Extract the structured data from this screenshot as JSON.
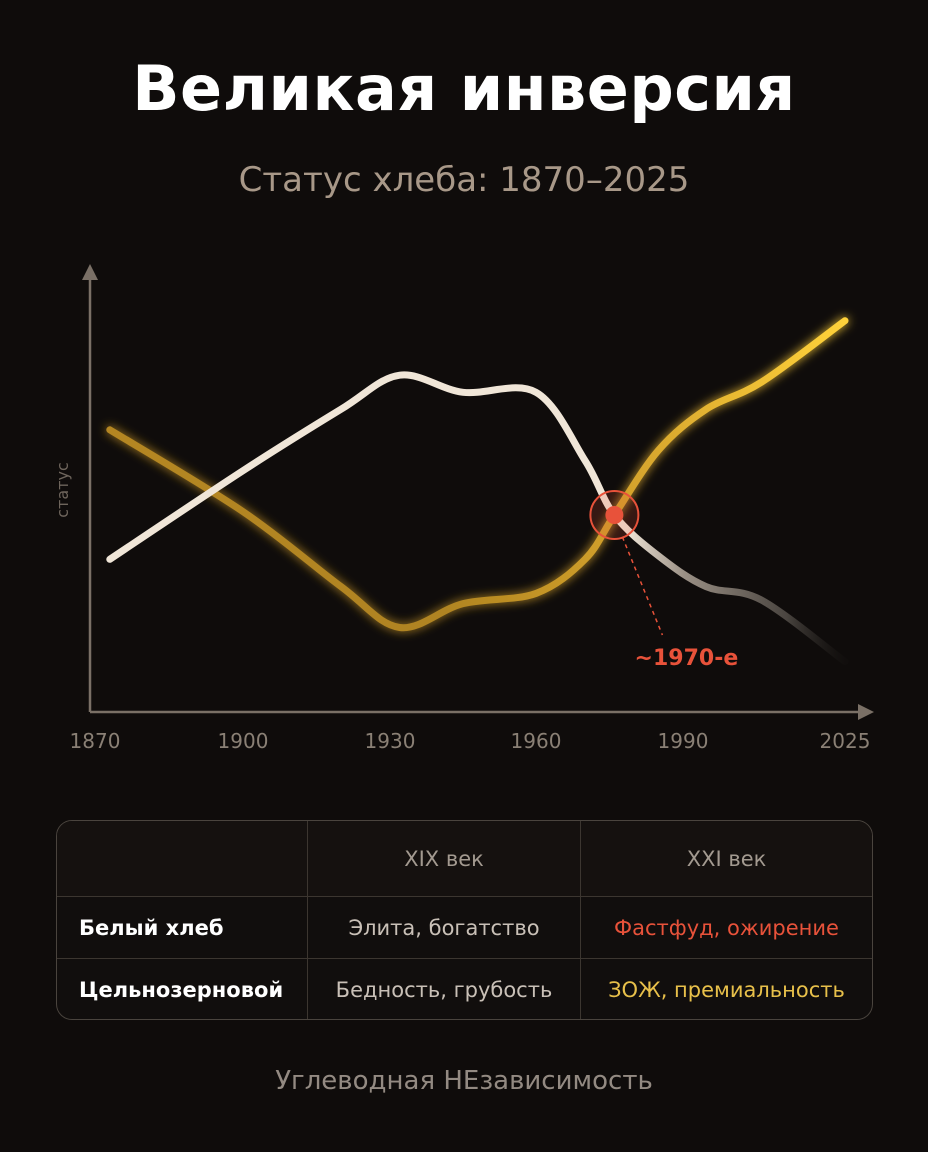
{
  "header": {
    "title": "Великая инверсия",
    "subtitle": "Статус хлеба: 1870–2025"
  },
  "chart_data": {
    "type": "line",
    "ylabel": "статус",
    "x_ticks": [
      "1870",
      "1900",
      "1930",
      "1960",
      "1990",
      "2025"
    ],
    "series": [
      {
        "key": "white_bread",
        "color": "#f0e6d8",
        "points": [
          [
            1873,
            2.1
          ],
          [
            1900,
            4.7
          ],
          [
            1920,
            6.5
          ],
          [
            1932,
            7.5
          ],
          [
            1945,
            7.0
          ],
          [
            1960,
            7.0
          ],
          [
            1970,
            5.0
          ],
          [
            1976,
            3.4
          ],
          [
            1985,
            2.2
          ],
          [
            1995,
            1.3
          ],
          [
            2007,
            0.9
          ],
          [
            2025,
            -0.9
          ]
        ]
      },
      {
        "key": "whole_grain",
        "color": "#c29228",
        "points": [
          [
            1873,
            5.9
          ],
          [
            1900,
            3.5
          ],
          [
            1920,
            1.3
          ],
          [
            1932,
            0.1
          ],
          [
            1945,
            0.8
          ],
          [
            1960,
            1.1
          ],
          [
            1970,
            2.1
          ],
          [
            1976,
            3.4
          ],
          [
            1985,
            5.3
          ],
          [
            1995,
            6.5
          ],
          [
            2007,
            7.3
          ],
          [
            2025,
            9.1
          ]
        ]
      }
    ],
    "annotation": {
      "label": "~1970-е",
      "x": 1976,
      "y": 3.4,
      "color": "#e8523a"
    }
  },
  "table": {
    "headers": [
      "",
      "XIX век",
      "XXI век"
    ],
    "rows": [
      {
        "label": "Белый хлеб",
        "c19": "Элита, богатство",
        "c21": "Фастфуд, ожирение"
      },
      {
        "label": "Цельнозерновой",
        "c19": "Бедность, грубость",
        "c21": "ЗОЖ, премиальность"
      }
    ]
  },
  "footer": "Углеводная НЕзависимость"
}
